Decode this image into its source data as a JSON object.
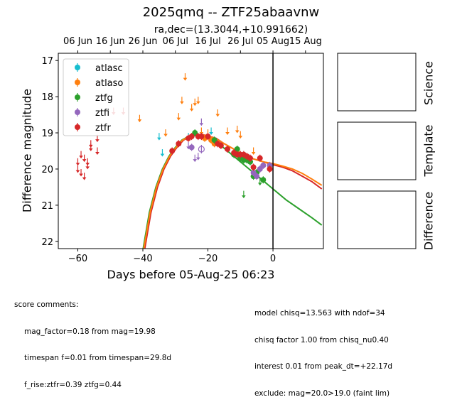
{
  "header": {
    "title": "2025qmq -- ZTF25abaavnw",
    "subtitle": "ra,dec=(13.3044,+10.991662)"
  },
  "panels": {
    "science_label": "Science",
    "template_label": "Template",
    "difference_label": "Difference"
  },
  "score_comments": {
    "heading": "score comments:",
    "lines": [
      "mag_factor=0.18 from mag=19.98",
      "timespan f=0.01 from timespan=29.8d",
      "f_rise:ztfr=0.39 ztfg=0.44"
    ]
  },
  "model_comments": {
    "lines": [
      "model chisq=13.563 with ndof=34",
      "chisq factor 1.00 from chisq_nu0.40",
      "interest 0.01 from peak_dt=+22.17d",
      "exclude: mag=20.0>19.0 (faint lim)"
    ]
  },
  "chart_data": {
    "type": "scatter",
    "title": "2025qmq -- ZTF25abaavnw",
    "xlabel": "Days before 05-Aug-25 06:23",
    "ylabel": "Difference magnitude",
    "xlim": [
      -66,
      15.5
    ],
    "ylim": [
      22.2,
      16.8
    ],
    "y_inverted": true,
    "xticks": [
      -60,
      -40,
      -20,
      0
    ],
    "xtick_labels": [
      "−60",
      "−40",
      "−20",
      "0"
    ],
    "yticks": [
      17,
      18,
      19,
      20,
      21,
      22
    ],
    "top_axis": {
      "ticks": [
        -60,
        -50,
        -40,
        -30,
        -20,
        -10,
        0,
        10
      ],
      "labels": [
        "06 Jun",
        "16 Jun",
        "26 Jun",
        "06 Jul",
        "16 Jul",
        "26 Jul",
        "05 Aug",
        "15 Aug"
      ]
    },
    "vline_x": 0,
    "legend_position": "upper-left",
    "series": [
      {
        "name": "atlasc",
        "color": "#17becf",
        "detections": [],
        "upper_limits": [
          [
            -35,
            19.1
          ],
          [
            -34,
            19.55
          ],
          [
            -26,
            19.1
          ],
          [
            -19,
            18.95
          ]
        ]
      },
      {
        "name": "atlaso",
        "color": "#ff7f0e",
        "detections": [
          [
            -21,
            19.15
          ],
          [
            -19,
            19.2
          ],
          [
            -18,
            19.3
          ]
        ],
        "upper_limits": [
          [
            -41,
            18.6
          ],
          [
            -33,
            19.0
          ],
          [
            -29,
            18.55
          ],
          [
            -27,
            17.45
          ],
          [
            -28,
            18.1
          ],
          [
            -25,
            18.3
          ],
          [
            -24,
            18.15
          ],
          [
            -23,
            18.1
          ],
          [
            -22,
            18.95
          ],
          [
            -20,
            19.0
          ],
          [
            -17,
            18.45
          ],
          [
            -14,
            18.95
          ],
          [
            -11,
            18.9
          ],
          [
            -10,
            19.05
          ],
          [
            -6,
            19.5
          ]
        ]
      },
      {
        "name": "ztfg",
        "color": "#2ca02c",
        "detections": [
          [
            -24,
            19.0
          ],
          [
            -18,
            19.2
          ],
          [
            -12,
            19.6
          ],
          [
            -11,
            19.45
          ],
          [
            -10,
            19.7
          ],
          [
            -9,
            19.75
          ],
          [
            -8,
            19.75
          ],
          [
            -7,
            19.8
          ],
          [
            -6,
            20.2
          ],
          [
            -5,
            20.1
          ],
          [
            -3,
            20.3
          ]
        ],
        "upper_limits": [
          [
            -9,
            20.7
          ],
          [
            -4,
            20.35
          ]
        ]
      },
      {
        "name": "ztfi",
        "color": "#9467bd",
        "detections": [
          [
            -25,
            19.4
          ],
          [
            -6,
            20.1
          ],
          [
            -5,
            20.2
          ],
          [
            -4,
            20.0
          ],
          [
            -3,
            19.9
          ],
          [
            -1,
            19.9
          ]
        ],
        "upper_limits": [
          [
            -26,
            19.35
          ],
          [
            -24,
            19.7
          ],
          [
            -23,
            19.65
          ],
          [
            -22,
            18.7
          ]
        ]
      },
      {
        "name": "ztfr",
        "color": "#d62728",
        "detections": [
          [
            -31,
            19.5
          ],
          [
            -29,
            19.3
          ],
          [
            -26,
            19.15
          ],
          [
            -25,
            19.1
          ],
          [
            -23,
            19.1
          ],
          [
            -22,
            19.1
          ],
          [
            -20,
            19.1
          ],
          [
            -17,
            19.3
          ],
          [
            -16,
            19.35
          ],
          [
            -14,
            19.45
          ],
          [
            -12,
            19.55
          ],
          [
            -11,
            19.6
          ],
          [
            -10,
            19.6
          ],
          [
            -9,
            19.6
          ],
          [
            -8,
            19.65
          ],
          [
            -7,
            19.7
          ],
          [
            -6,
            19.95
          ],
          [
            -4,
            19.7
          ],
          [
            -1,
            20.0
          ]
        ],
        "upper_limits": [
          [
            -60,
            19.8
          ],
          [
            -60,
            20.0
          ],
          [
            -59,
            19.6
          ],
          [
            -59,
            20.1
          ],
          [
            -58,
            19.7
          ],
          [
            -58,
            20.2
          ],
          [
            -57,
            19.8
          ],
          [
            -57,
            19.9
          ],
          [
            -56,
            19.3
          ],
          [
            -56,
            19.4
          ],
          [
            -54,
            19.15
          ],
          [
            -54,
            19.5
          ],
          [
            -49,
            18.4
          ],
          [
            -46,
            18.4
          ]
        ],
        "open_markers": [
          [
            -22,
            19.45
          ]
        ]
      }
    ],
    "model_curves": [
      {
        "band": "ztfg",
        "color": "#2ca02c",
        "points": [
          [
            -40,
            22.25
          ],
          [
            -38,
            21.2
          ],
          [
            -36,
            20.5
          ],
          [
            -34,
            20.0
          ],
          [
            -32,
            19.65
          ],
          [
            -30,
            19.4
          ],
          [
            -28,
            19.2
          ],
          [
            -26,
            19.1
          ],
          [
            -24,
            19.05
          ],
          [
            -22,
            19.05
          ],
          [
            -20,
            19.1
          ],
          [
            -18,
            19.2
          ],
          [
            -16,
            19.35
          ],
          [
            -14,
            19.5
          ],
          [
            -12,
            19.65
          ],
          [
            -10,
            19.8
          ],
          [
            -8,
            19.95
          ],
          [
            -6,
            20.1
          ],
          [
            -4,
            20.25
          ],
          [
            -2,
            20.4
          ],
          [
            0,
            20.55
          ],
          [
            4,
            20.85
          ],
          [
            8,
            21.1
          ],
          [
            12,
            21.35
          ],
          [
            15,
            21.55
          ]
        ]
      },
      {
        "band": "ztfr",
        "color": "#d62728",
        "points": [
          [
            -39.5,
            22.25
          ],
          [
            -37.5,
            21.2
          ],
          [
            -35.5,
            20.5
          ],
          [
            -33.5,
            20.0
          ],
          [
            -31.5,
            19.65
          ],
          [
            -29.5,
            19.4
          ],
          [
            -27.5,
            19.2
          ],
          [
            -25.5,
            19.1
          ],
          [
            -23.5,
            19.05
          ],
          [
            -21.5,
            19.05
          ],
          [
            -19.5,
            19.1
          ],
          [
            -17.5,
            19.15
          ],
          [
            -15,
            19.3
          ],
          [
            -12,
            19.45
          ],
          [
            -9,
            19.6
          ],
          [
            -6,
            19.72
          ],
          [
            -3,
            19.8
          ],
          [
            0,
            19.88
          ],
          [
            3,
            19.95
          ],
          [
            6,
            20.05
          ],
          [
            9,
            20.2
          ],
          [
            12,
            20.35
          ],
          [
            15,
            20.55
          ]
        ]
      },
      {
        "band": "atlaso",
        "color": "#ff7f0e",
        "points": [
          [
            -39.8,
            22.25
          ],
          [
            -37.8,
            21.2
          ],
          [
            -35.8,
            20.5
          ],
          [
            -33.8,
            20.0
          ],
          [
            -31.8,
            19.65
          ],
          [
            -29.8,
            19.4
          ],
          [
            -27.8,
            19.2
          ],
          [
            -25.8,
            19.1
          ],
          [
            -23.8,
            19.05
          ],
          [
            -21.8,
            19.05
          ],
          [
            -19.8,
            19.1
          ],
          [
            -17.8,
            19.15
          ],
          [
            -15,
            19.3
          ],
          [
            -12,
            19.45
          ],
          [
            -9,
            19.6
          ],
          [
            -6,
            19.72
          ],
          [
            -3,
            19.8
          ],
          [
            0,
            19.85
          ],
          [
            3,
            19.92
          ],
          [
            6,
            20.0
          ],
          [
            9,
            20.12
          ],
          [
            12,
            20.28
          ],
          [
            15,
            20.45
          ]
        ]
      }
    ]
  }
}
